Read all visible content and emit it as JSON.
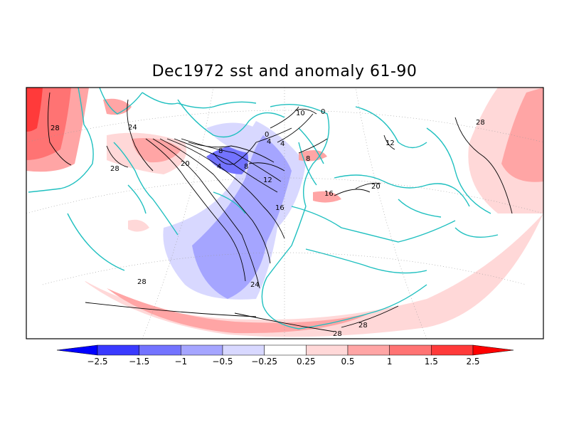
{
  "title": "Dec1972 sst and anomaly 61-90",
  "colorbar": {
    "labels": [
      "−2.5",
      "−1.5",
      "−1",
      "−0.5",
      "−0.25",
      "0.25",
      "0.5",
      "1",
      "1.5",
      "2.5"
    ],
    "colors": [
      "#0000ff",
      "#3a3aff",
      "#7373ff",
      "#a5a5ff",
      "#d8d8ff",
      "#ffffff",
      "#ffd8d8",
      "#ffa5a5",
      "#ff7373",
      "#ff3a3a",
      "#ff0000"
    ]
  },
  "contour_labels": [
    "28",
    "24",
    "28",
    "20",
    "8",
    "4",
    "8",
    "4",
    "0",
    "4",
    "12",
    "16",
    "24",
    "28",
    "28",
    "28",
    "16",
    "20",
    "12",
    "10",
    "0",
    "8",
    "28"
  ],
  "colors": {
    "coast": "#20c0c0",
    "contour": "#000000",
    "frame": "#000000"
  }
}
